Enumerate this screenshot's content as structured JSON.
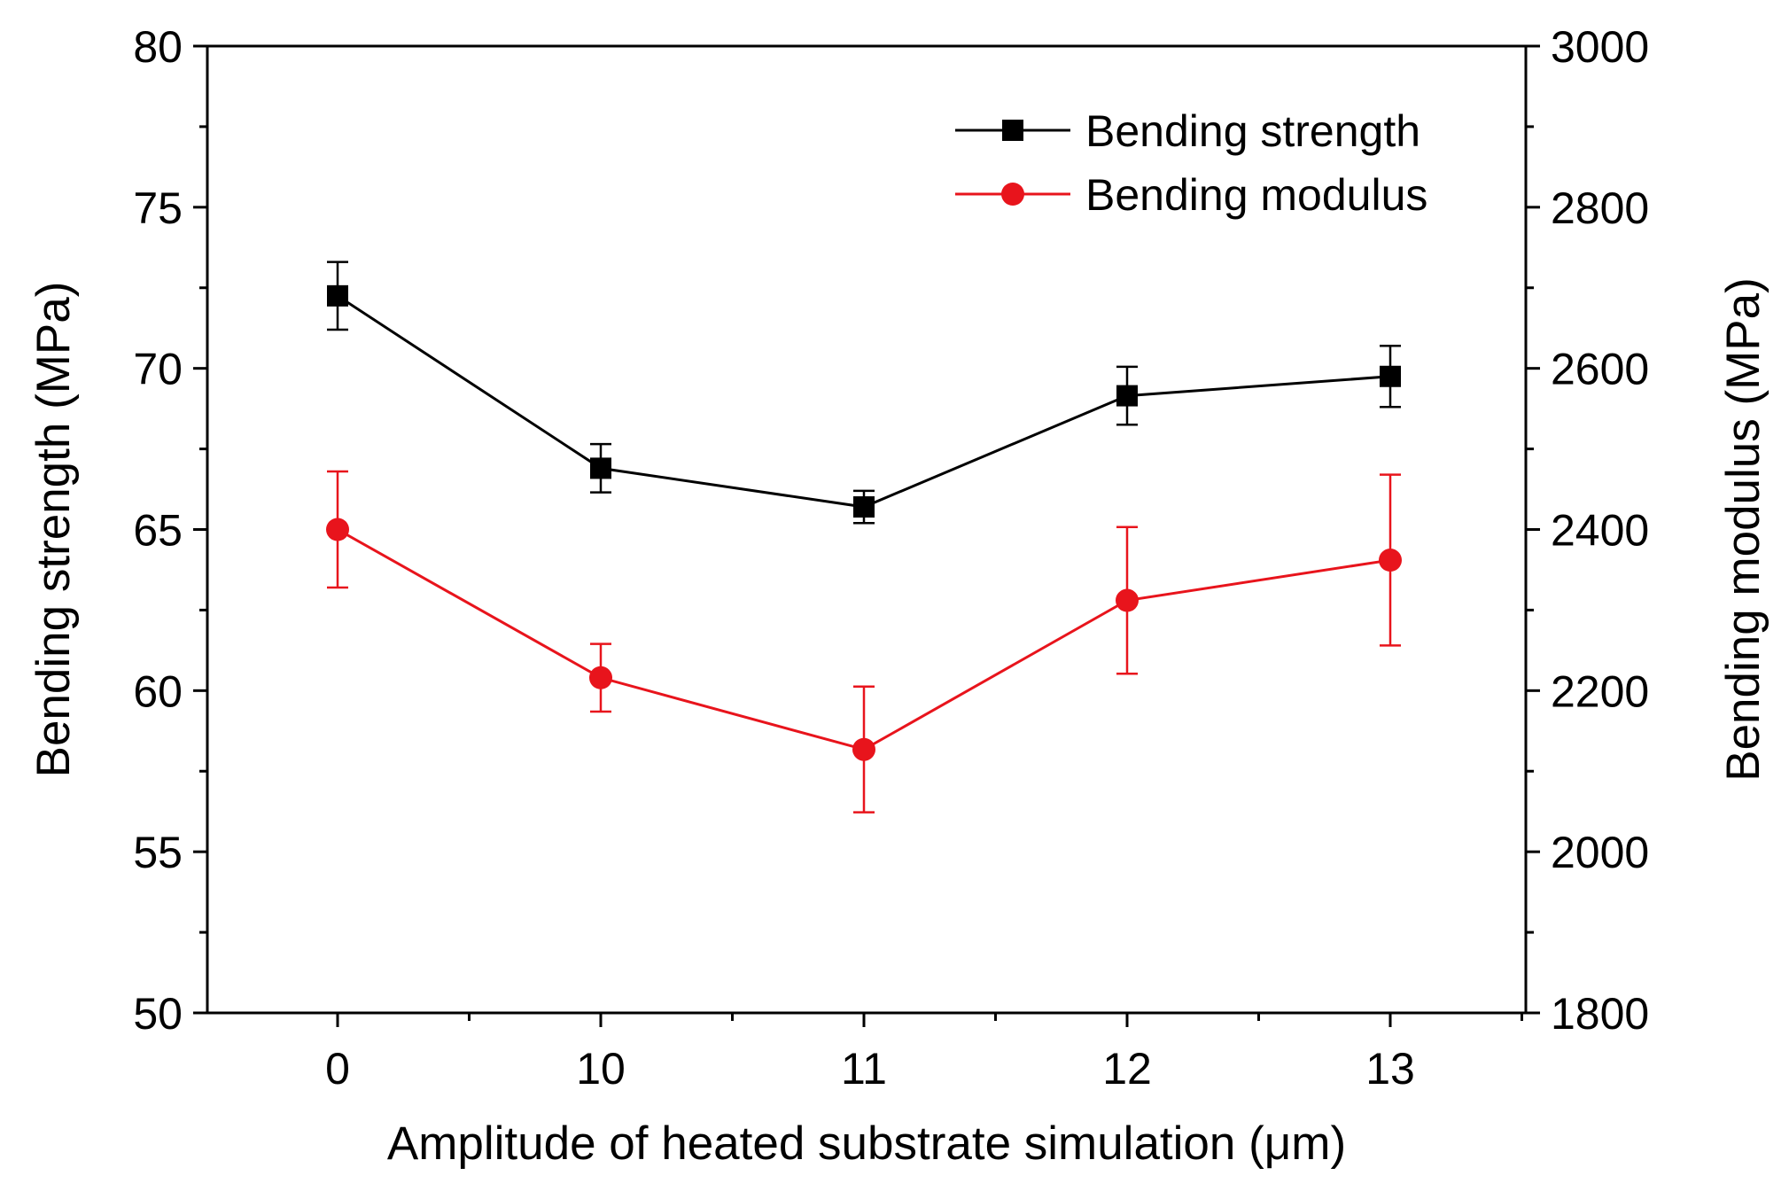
{
  "chart_data": {
    "type": "line",
    "title": "",
    "categories": [
      "0",
      "10",
      "11",
      "12",
      "13"
    ],
    "xlabel": "Amplitude of heated substrate simulation (μm)",
    "ylabel": "Bending strength (MPa)",
    "y2label": "Bending modulus (MPa)",
    "ylim": [
      50,
      80
    ],
    "y2lim": [
      1800,
      3000
    ],
    "yticks": [
      50,
      55,
      60,
      65,
      70,
      75,
      80
    ],
    "y2ticks": [
      1800,
      2000,
      2200,
      2400,
      2600,
      2800,
      3000
    ],
    "grid": false,
    "legend_position": "top-right",
    "series": [
      {
        "name": "Bending strength",
        "axis": "left",
        "color": "#000000",
        "marker": "square",
        "values": [
          72.25,
          66.9,
          65.7,
          69.15,
          69.75
        ],
        "errors": [
          1.05,
          0.75,
          0.5,
          0.9,
          0.95
        ]
      },
      {
        "name": "Bending modulus",
        "axis": "right",
        "color": "#e8141c",
        "marker": "circle",
        "values": [
          2400,
          2216,
          2127,
          2312,
          2362
        ],
        "errors": [
          72,
          42,
          78,
          91,
          106
        ]
      }
    ]
  }
}
